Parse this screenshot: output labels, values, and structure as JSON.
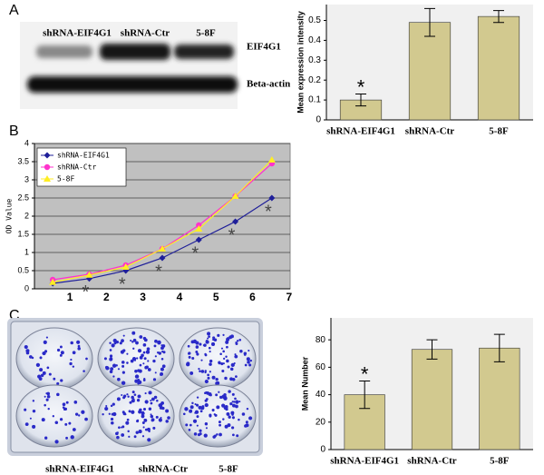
{
  "panels": [
    "A",
    "B",
    "C"
  ],
  "blot": {
    "lanes": [
      "shRNA-EIF4G1",
      "shRNA-Ctr",
      "5-8F"
    ],
    "bands": [
      "EIF4G1",
      "Beta-actin"
    ]
  },
  "plate": {
    "lanes": [
      "shRNA-EIF4G1",
      "shRNA-Ctr",
      "5-8F"
    ]
  },
  "chart_data": [
    {
      "type": "bar",
      "ylabel": "Mean expression intensity",
      "categories": [
        "shRNA-EIF4G1",
        "shRNA-Ctr",
        "5-8F"
      ],
      "values": [
        0.1,
        0.49,
        0.52
      ],
      "errors": [
        0.03,
        0.07,
        0.03
      ],
      "color": "#d2c98f",
      "plot_background": "#f0f0f0",
      "ylim": [
        0,
        0.58
      ],
      "yticks": [
        0,
        0.1,
        0.2,
        0.3,
        0.4,
        0.5
      ],
      "annotation": "*",
      "annotated_category": "shRNA-EIF4G1"
    },
    {
      "type": "line",
      "ylabel": "OD Value",
      "categories": [
        "1",
        "2",
        "3",
        "4",
        "5",
        "6",
        "7"
      ],
      "series": [
        {
          "name": "shRNA-EIF4G1",
          "color": "#1f1f99",
          "marker": "diamond",
          "values": [
            0.15,
            0.28,
            0.5,
            0.85,
            1.35,
            1.85,
            2.5
          ]
        },
        {
          "name": "shRNA-Ctr",
          "color": "#ff33cc",
          "marker": "circle",
          "values": [
            0.25,
            0.4,
            0.65,
            1.1,
            1.75,
            2.55,
            3.45
          ]
        },
        {
          "name": "5-8F",
          "color": "#ffee22",
          "marker": "triangle",
          "values": [
            0.18,
            0.38,
            0.6,
            1.1,
            1.65,
            2.55,
            3.55
          ]
        }
      ],
      "plot_background": "#c0c0c0",
      "grid": true,
      "ylim": [
        0,
        4
      ],
      "yticks": [
        0,
        0.5,
        1,
        1.5,
        2,
        2.5,
        3,
        3.5,
        4
      ],
      "legend": "upper left",
      "annotation": "*",
      "annotated_series": "shRNA-EIF4G1"
    },
    {
      "type": "bar",
      "ylabel": "Mean Number",
      "categories": [
        "shRNA-EIF4G1",
        "shRNA-Ctr",
        "5-8F"
      ],
      "values": [
        40,
        73,
        74
      ],
      "errors": [
        10,
        7,
        10
      ],
      "color": "#d2c98f",
      "plot_background": "#f0f0f0",
      "ylim": [
        0,
        96
      ],
      "yticks": [
        0,
        20,
        40,
        60,
        80
      ],
      "annotation": "*",
      "annotated_category": "shRNA-EIF4G1"
    }
  ]
}
